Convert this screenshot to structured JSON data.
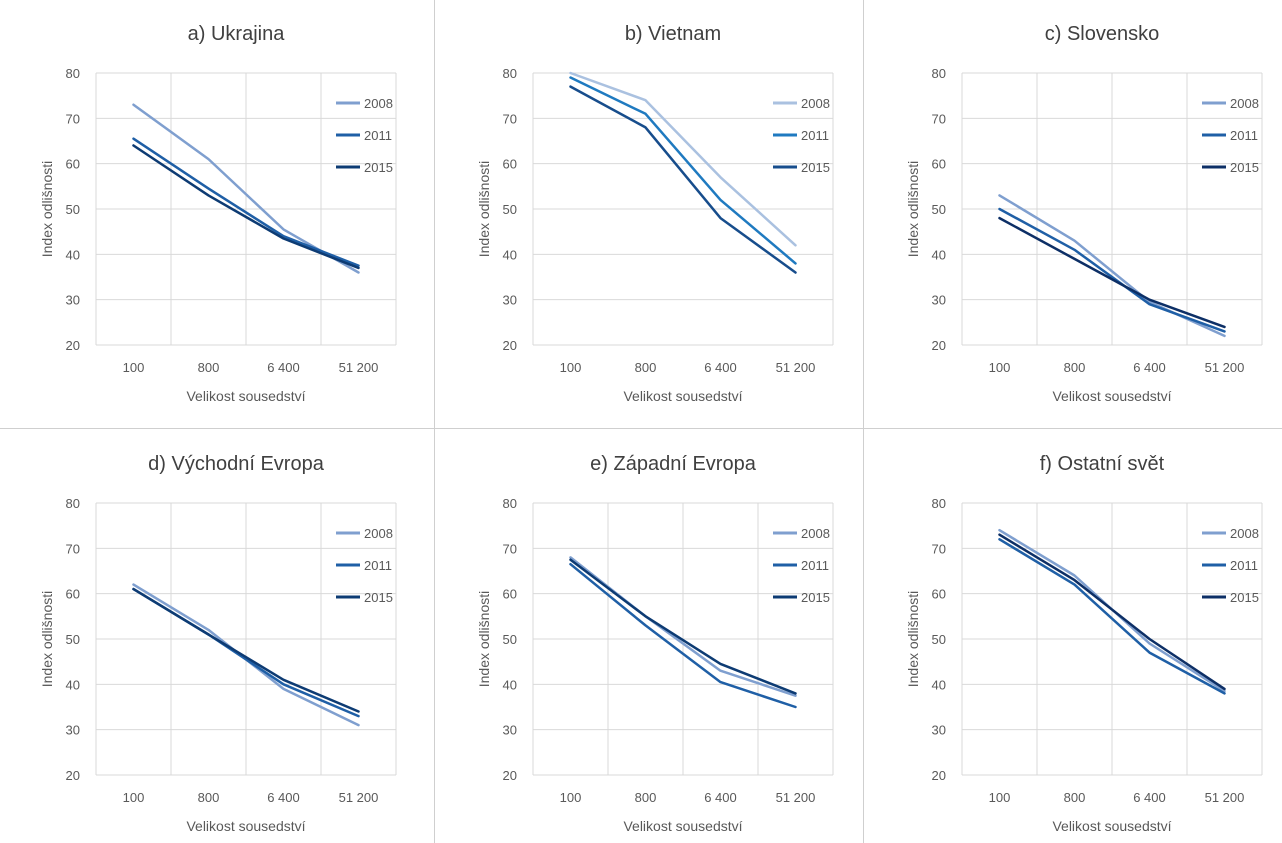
{
  "chart_data": [
    {
      "type": "line",
      "title": "a) Ukrajina",
      "xlabel": "Velikost sousedství",
      "ylabel": "Index odlišnosti",
      "categories": [
        "100",
        "800",
        "6 400",
        "51 200"
      ],
      "ylim": [
        20,
        80
      ],
      "yticks": [
        "20",
        "30",
        "40",
        "50",
        "60",
        "70",
        "80"
      ],
      "grid": true,
      "legend_position": "right",
      "series": [
        {
          "name": "2008",
          "color": "#7f9fcf",
          "values": [
            73,
            61,
            45.5,
            36
          ]
        },
        {
          "name": "2011",
          "color": "#1f5fa6",
          "values": [
            65.5,
            54.5,
            44,
            37.5
          ]
        },
        {
          "name": "2015",
          "color": "#0d3b73",
          "values": [
            64,
            53,
            43.5,
            37
          ]
        }
      ]
    },
    {
      "type": "line",
      "title": "b) Vietnam",
      "xlabel": "Velikost sousedství",
      "ylabel": "Index odlišnosti",
      "categories": [
        "100",
        "800",
        "6 400",
        "51 200"
      ],
      "ylim": [
        20,
        80
      ],
      "yticks": [
        "20",
        "30",
        "40",
        "50",
        "60",
        "70",
        "80"
      ],
      "grid": false,
      "legend_position": "right",
      "series": [
        {
          "name": "2008",
          "color": "#aac1e0",
          "values": [
            80,
            74,
            57,
            42
          ]
        },
        {
          "name": "2011",
          "color": "#1f7ac0",
          "values": [
            79,
            71,
            52,
            38
          ]
        },
        {
          "name": "2015",
          "color": "#174d8c",
          "values": [
            77,
            68,
            48,
            36
          ]
        }
      ]
    },
    {
      "type": "line",
      "title": "c) Slovensko",
      "xlabel": "Velikost sousedství",
      "ylabel": "Index odlišnosti",
      "categories": [
        "100",
        "800",
        "6 400",
        "51 200"
      ],
      "ylim": [
        20,
        80
      ],
      "yticks": [
        "20",
        "30",
        "40",
        "50",
        "60",
        "70",
        "80"
      ],
      "grid": true,
      "legend_position": "right",
      "series": [
        {
          "name": "2008",
          "color": "#7f9fcf",
          "values": [
            53,
            43,
            29.5,
            22
          ]
        },
        {
          "name": "2011",
          "color": "#1f5fa6",
          "values": [
            50,
            41,
            29,
            23
          ]
        },
        {
          "name": "2015",
          "color": "#0d2f66",
          "values": [
            48,
            39,
            30,
            24
          ]
        }
      ]
    },
    {
      "type": "line",
      "title": "d) Východní Evropa",
      "xlabel": "Velikost sousedství",
      "ylabel": "Index odlišnosti",
      "categories": [
        "100",
        "800",
        "6 400",
        "51 200"
      ],
      "ylim": [
        20,
        80
      ],
      "yticks": [
        "20",
        "30",
        "40",
        "50",
        "60",
        "70",
        "80"
      ],
      "grid": true,
      "legend_position": "right",
      "series": [
        {
          "name": "2008",
          "color": "#7f9fcf",
          "values": [
            62,
            52,
            39,
            31
          ]
        },
        {
          "name": "2011",
          "color": "#1f5fa6",
          "values": [
            61,
            51,
            40,
            33
          ]
        },
        {
          "name": "2015",
          "color": "#0d3b73",
          "values": [
            61,
            51,
            41,
            34
          ]
        }
      ]
    },
    {
      "type": "line",
      "title": "e) Západní Evropa",
      "xlabel": "Velikost sousedství",
      "ylabel": "Index odlišnosti",
      "categories": [
        "100",
        "800",
        "6 400",
        "51 200"
      ],
      "ylim": [
        20,
        80
      ],
      "yticks": [
        "20",
        "30",
        "40",
        "50",
        "60",
        "70",
        "80"
      ],
      "grid": true,
      "legend_position": "right",
      "series": [
        {
          "name": "2008",
          "color": "#7f9fcf",
          "values": [
            68,
            55,
            43,
            37.5
          ]
        },
        {
          "name": "2011",
          "color": "#1f5fa6",
          "values": [
            66.5,
            53,
            40.5,
            35
          ]
        },
        {
          "name": "2015",
          "color": "#0d3b73",
          "values": [
            67.5,
            55,
            44.5,
            38
          ]
        }
      ]
    },
    {
      "type": "line",
      "title": "f) Ostatní svět",
      "xlabel": "Velikost sousedství",
      "ylabel": "Index odlišnosti",
      "categories": [
        "100",
        "800",
        "6 400",
        "51 200"
      ],
      "ylim": [
        20,
        80
      ],
      "yticks": [
        "20",
        "30",
        "40",
        "50",
        "60",
        "70",
        "80"
      ],
      "grid": true,
      "legend_position": "right",
      "series": [
        {
          "name": "2008",
          "color": "#7f9fcf",
          "values": [
            74,
            64,
            49,
            38.5
          ]
        },
        {
          "name": "2011",
          "color": "#1f5fa6",
          "values": [
            72,
            62,
            47,
            38
          ]
        },
        {
          "name": "2015",
          "color": "#0d2f66",
          "values": [
            73,
            63,
            50,
            39
          ]
        }
      ]
    }
  ]
}
